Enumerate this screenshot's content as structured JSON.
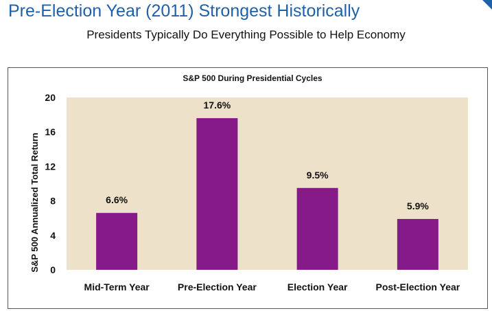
{
  "slide": {
    "title": "Pre-Election Year (2011) Strongest Historically",
    "subtitle": "Presidents Typically Do Everything Possible to Help Economy"
  },
  "colors": {
    "title": "#1f61a9",
    "plot_background": "#ede1c9",
    "bar": "#861a88"
  },
  "chart_data": {
    "type": "bar",
    "title": "S&P 500 During Presidential Cycles",
    "xlabel": "",
    "ylabel": "S&P 500 Annualized Total Return",
    "categories": [
      "Mid-Term Year",
      "Pre-Election Year",
      "Election Year",
      "Post-Election Year"
    ],
    "values": [
      6.6,
      17.6,
      9.5,
      5.9
    ],
    "value_labels": [
      "6.6%",
      "17.6%",
      "9.5%",
      "5.9%"
    ],
    "ylim": [
      0,
      20
    ],
    "yticks": [
      0,
      4,
      8,
      12,
      16,
      20
    ],
    "grid": false,
    "legend": "none"
  }
}
